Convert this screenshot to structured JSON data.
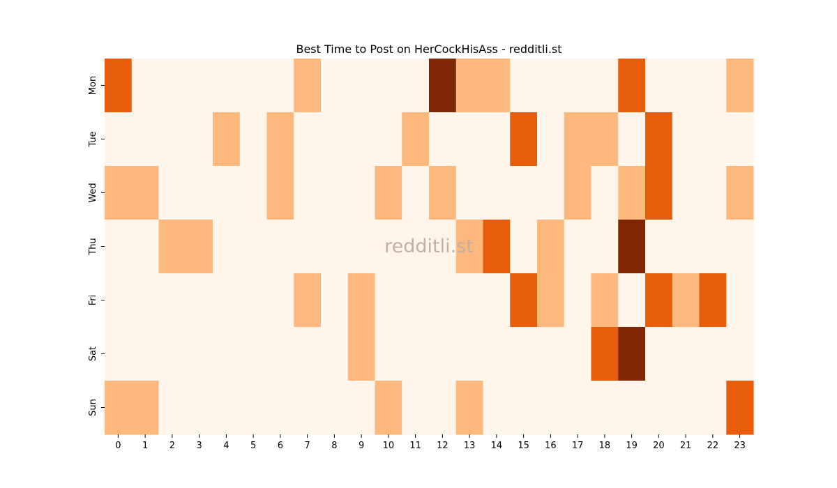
{
  "chart_data": {
    "type": "heatmap",
    "title": "Best Time to Post on HerCockHisAss - redditli.st",
    "watermark": "redditli.st",
    "xlabel": "",
    "ylabel": "",
    "x": [
      "0",
      "1",
      "2",
      "3",
      "4",
      "5",
      "6",
      "7",
      "8",
      "9",
      "10",
      "11",
      "12",
      "13",
      "14",
      "15",
      "16",
      "17",
      "18",
      "19",
      "20",
      "21",
      "22",
      "23"
    ],
    "y": [
      "Mon",
      "Tue",
      "Wed",
      "Thu",
      "Fri",
      "Sat",
      "Sun"
    ],
    "levels": 4,
    "colors": [
      "#fff5eb",
      "#fdb97d",
      "#e85d0c",
      "#7f2704"
    ],
    "legend": "none",
    "grid": false,
    "values": [
      [
        2,
        0,
        0,
        0,
        0,
        0,
        0,
        1,
        0,
        0,
        0,
        0,
        3,
        1,
        1,
        0,
        0,
        0,
        0,
        2,
        0,
        0,
        0,
        1
      ],
      [
        0,
        0,
        0,
        0,
        1,
        0,
        1,
        0,
        0,
        0,
        0,
        1,
        0,
        0,
        0,
        2,
        0,
        1,
        1,
        0,
        2,
        0,
        0,
        0
      ],
      [
        1,
        1,
        0,
        0,
        0,
        0,
        1,
        0,
        0,
        0,
        1,
        0,
        1,
        0,
        0,
        0,
        0,
        1,
        0,
        1,
        2,
        0,
        0,
        1
      ],
      [
        0,
        0,
        1,
        1,
        0,
        0,
        0,
        0,
        0,
        0,
        0,
        0,
        0,
        1,
        2,
        0,
        1,
        0,
        0,
        3,
        0,
        0,
        0,
        0
      ],
      [
        0,
        0,
        0,
        0,
        0,
        0,
        0,
        1,
        0,
        1,
        0,
        0,
        0,
        0,
        0,
        2,
        1,
        0,
        1,
        0,
        2,
        1,
        2,
        0
      ],
      [
        0,
        0,
        0,
        0,
        0,
        0,
        0,
        0,
        0,
        1,
        0,
        0,
        0,
        0,
        0,
        0,
        0,
        0,
        2,
        3,
        0,
        0,
        0,
        0
      ],
      [
        1,
        1,
        0,
        0,
        0,
        0,
        0,
        0,
        0,
        0,
        1,
        0,
        0,
        1,
        0,
        0,
        0,
        0,
        0,
        0,
        0,
        0,
        0,
        2
      ]
    ]
  }
}
